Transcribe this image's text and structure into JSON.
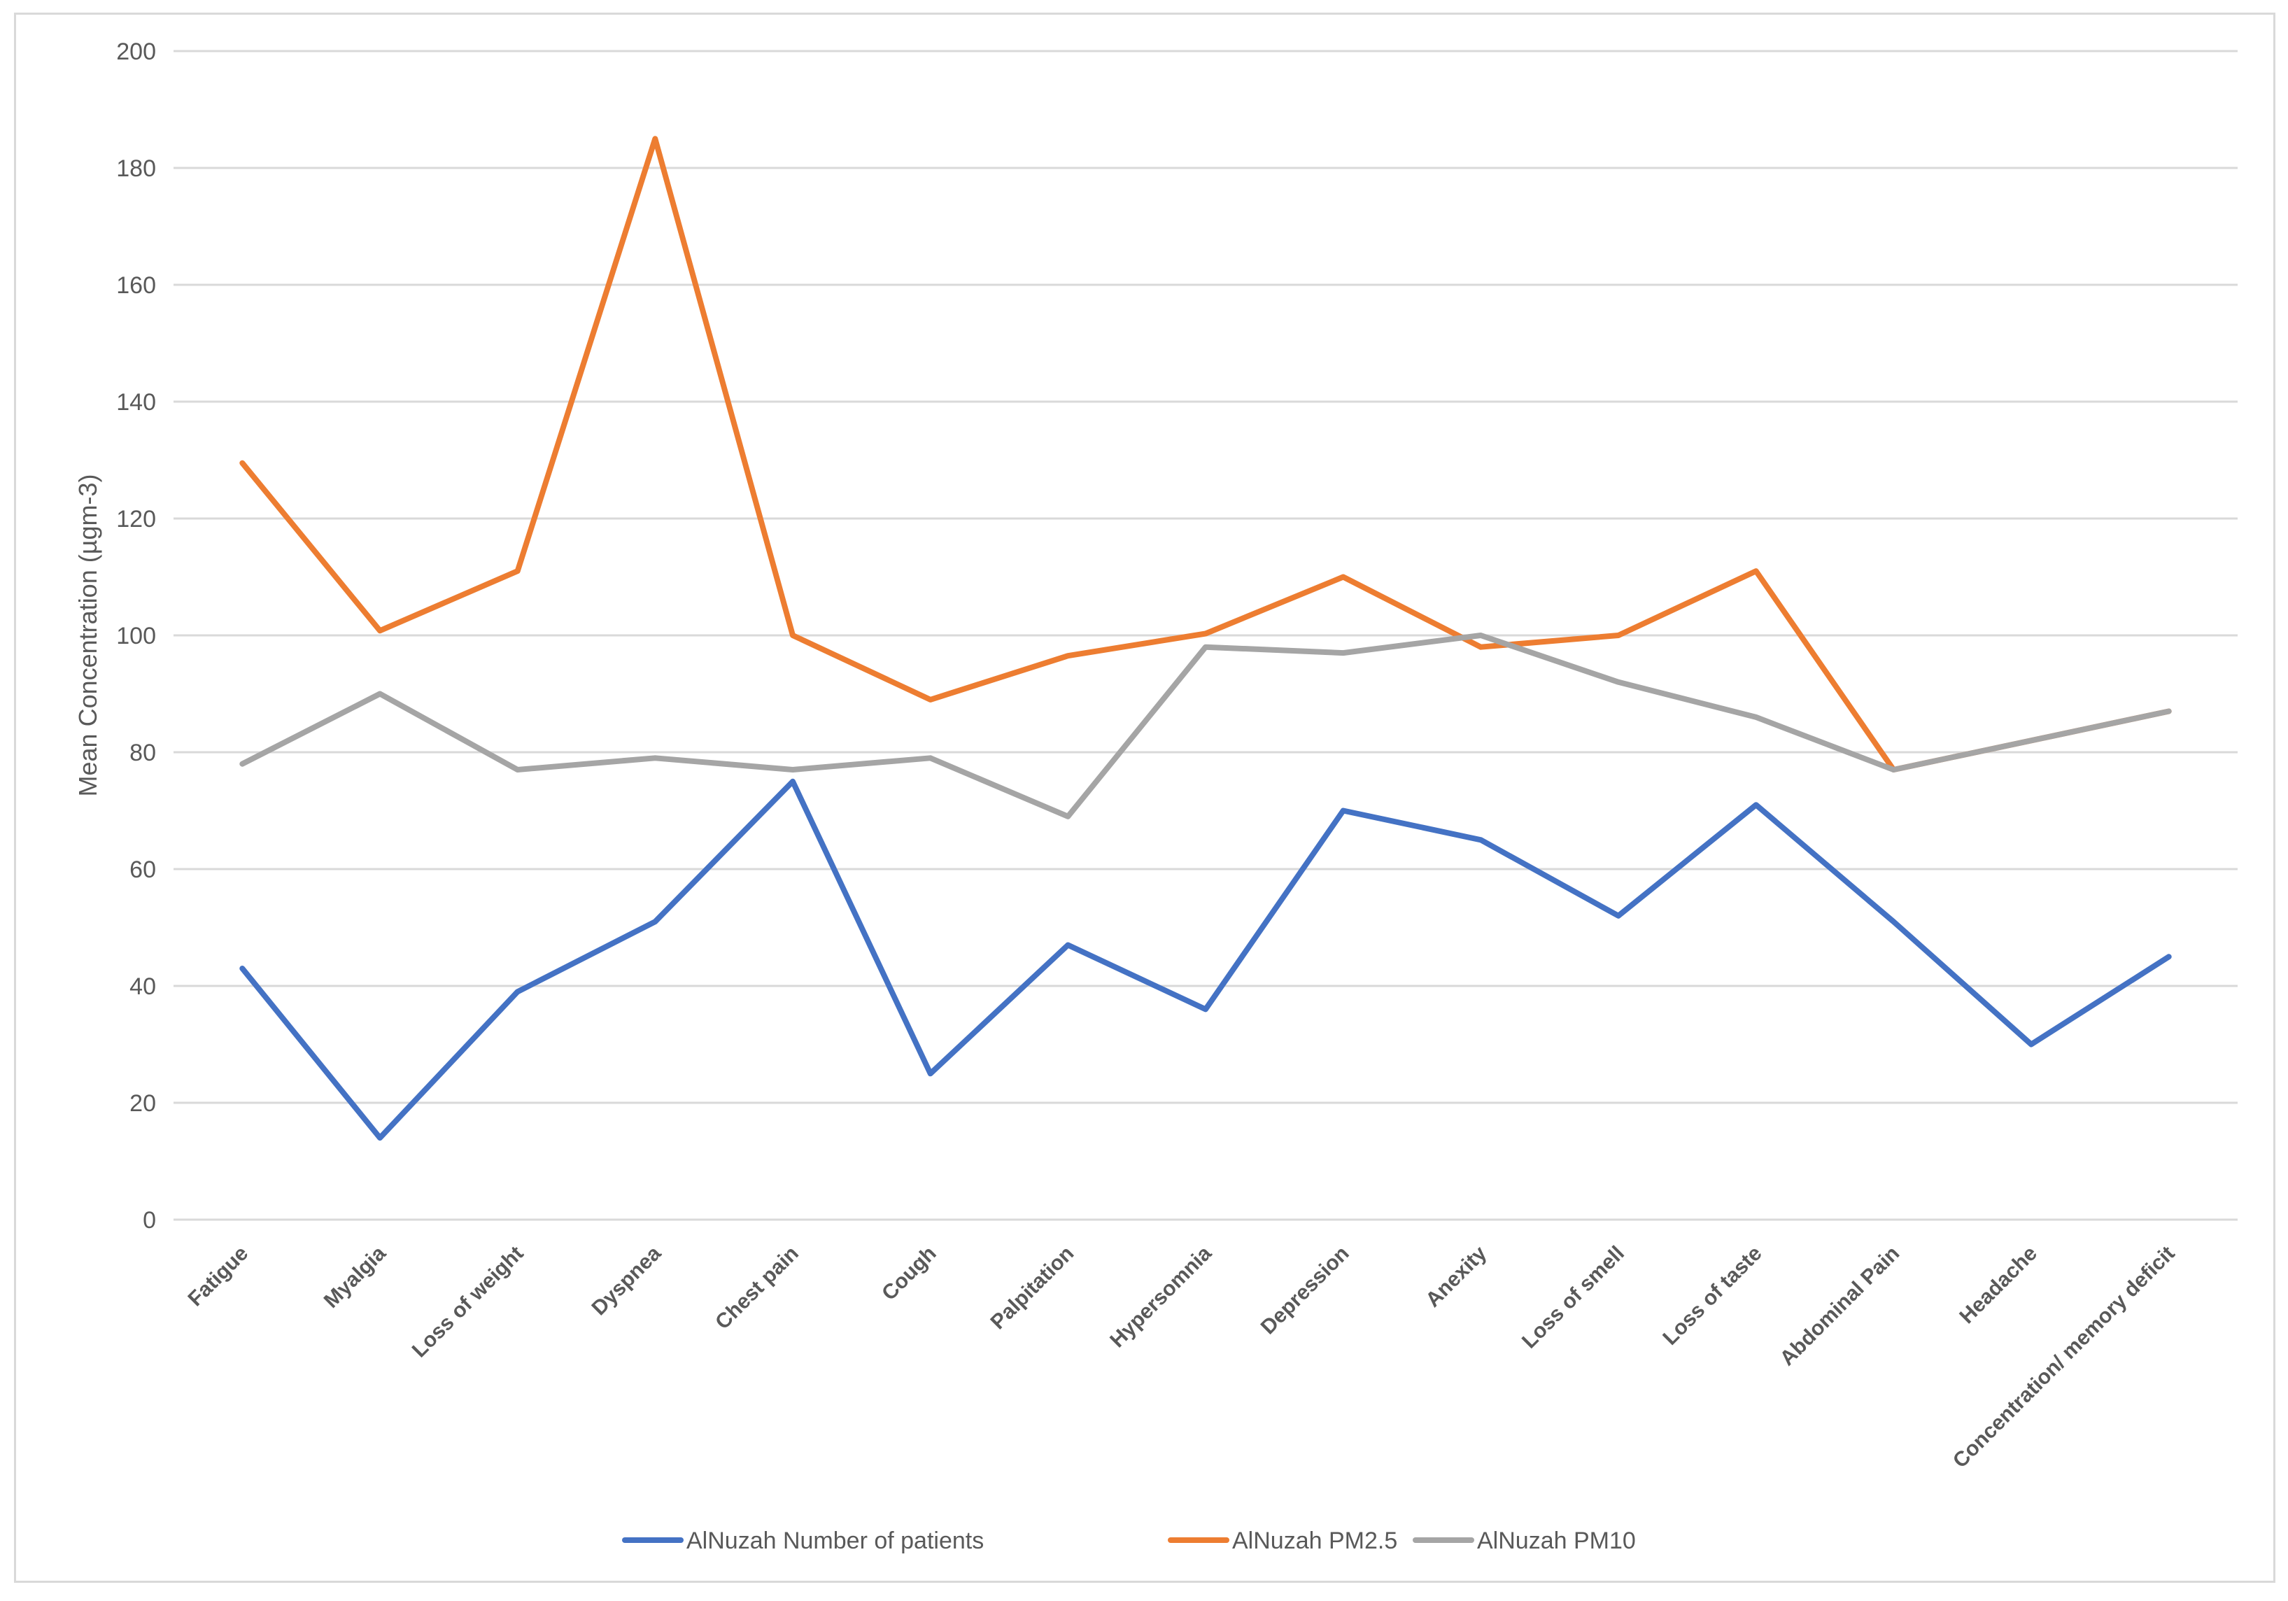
{
  "chart_data": {
    "type": "line",
    "title": "",
    "xlabel": "",
    "ylabel": "Mean Concentration (µgm-3)",
    "ylim": [
      0,
      200
    ],
    "yticks": [
      0,
      20,
      40,
      60,
      80,
      100,
      120,
      140,
      160,
      180,
      200
    ],
    "grid": true,
    "legend_position": "bottom",
    "categories": [
      "Fatigue",
      "Myalgia",
      "Loss of weight",
      "Dyspnea",
      "Chest pain",
      "Cough",
      "Palpitation",
      "Hypersomnia",
      "Depression",
      "Anexity",
      "Loss of smell",
      "Loss of taste",
      "Abdominal Pain",
      "Headache",
      "Concentration/ memory deficit"
    ],
    "series": [
      {
        "name": "AlNuzah Number of patients",
        "color": "#4472c4",
        "values": [
          43,
          14,
          39,
          51,
          75,
          25,
          47,
          36,
          70,
          65,
          52,
          71,
          51,
          30,
          45
        ]
      },
      {
        "name": "AlNuzah PM2.5",
        "color": "#ed7d31",
        "values": [
          129.5,
          100.8,
          111,
          185,
          100,
          89,
          96.5,
          100.3,
          110,
          98,
          100,
          111,
          77,
          82,
          87
        ]
      },
      {
        "name": "AlNuzah PM10",
        "color": "#a5a5a5",
        "values": [
          78,
          90,
          77,
          79,
          77,
          79,
          69,
          98,
          97,
          100,
          92,
          86,
          77,
          82,
          87
        ]
      }
    ]
  }
}
